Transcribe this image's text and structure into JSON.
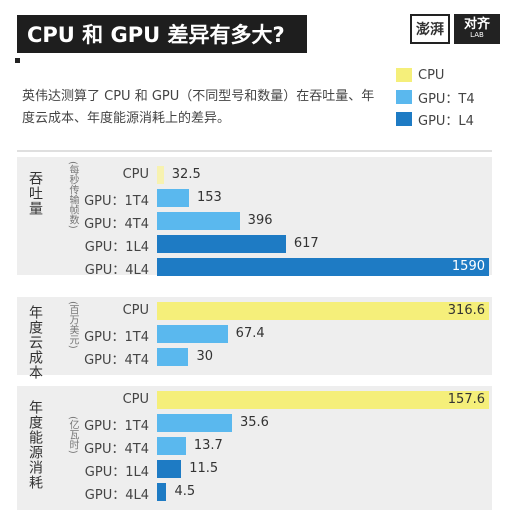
{
  "header": {
    "title": "CPU 和 GPU 差异有多大?"
  },
  "logo": {
    "brand1": "澎湃",
    "brand2": "对齐",
    "brand2_sub": "LAB"
  },
  "description": "英伟达测算了 CPU 和 GPU（不同型号和数量）在吞吐量、年度云成本、年度能源消耗上的差异。",
  "colors": {
    "cpu": "#f7f2b0",
    "gpu_t4": "#5ab8ee",
    "gpu_l4": "#1e7bc4"
  },
  "legend": [
    {
      "label": "CPU",
      "color": "#f5ef7a"
    },
    {
      "label": "GPU：T4",
      "color": "#5ab8ee"
    },
    {
      "label": "GPU：L4",
      "color": "#1e7bc4"
    }
  ],
  "chart_data": [
    {
      "type": "bar",
      "title": "吞吐量",
      "unit": "每秒传输帧数",
      "categories": [
        "CPU",
        "GPU：1T4",
        "GPU：4T4",
        "GPU：1L4",
        "GPU：4L4"
      ],
      "values": [
        32.5,
        153,
        396,
        617,
        1590
      ],
      "value_labels": [
        "32.5",
        "153",
        "396",
        "617",
        "1590"
      ],
      "bar_colors": [
        "#f7f2b0",
        "#5ab8ee",
        "#5ab8ee",
        "#1e7bc4",
        "#1e7bc4"
      ],
      "max": 1590
    },
    {
      "type": "bar",
      "title": "年度云成本",
      "unit": "百万美元",
      "categories": [
        "CPU",
        "GPU：1T4",
        "GPU：4T4"
      ],
      "values": [
        316.6,
        67.4,
        30
      ],
      "value_labels": [
        "316.6",
        "67.4",
        "30"
      ],
      "bar_colors": [
        "#f5ef7a",
        "#5ab8ee",
        "#5ab8ee"
      ],
      "max": 316.6
    },
    {
      "type": "bar",
      "title": "年度能源消耗",
      "unit": "亿瓦时",
      "categories": [
        "CPU",
        "GPU：1T4",
        "GPU：4T4",
        "GPU：1L4",
        "GPU：4L4"
      ],
      "values": [
        157.6,
        35.6,
        13.7,
        11.5,
        4.5
      ],
      "value_labels": [
        "157.6",
        "35.6",
        "13.7",
        "11.5",
        "4.5"
      ],
      "bar_colors": [
        "#f5ef7a",
        "#5ab8ee",
        "#5ab8ee",
        "#1e7bc4",
        "#1e7bc4"
      ],
      "max": 157.6
    }
  ]
}
